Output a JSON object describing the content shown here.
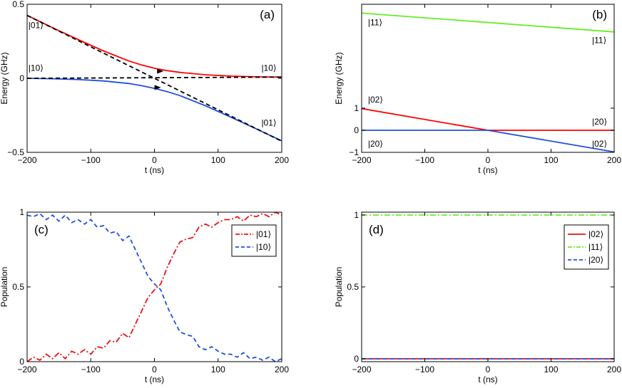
{
  "chart_data": [
    {
      "id": "a",
      "type": "line",
      "panel_label": "(a)",
      "xlabel": "t (ns)",
      "ylabel": "Energy (GHz)",
      "xlim": [
        -200,
        200
      ],
      "ylim": [
        -0.5,
        0.5
      ],
      "xticks": [
        -200,
        -100,
        0,
        100,
        200
      ],
      "yticks": [
        -0.5,
        0,
        0.5
      ],
      "ytick_labels": [
        "−0.5",
        "0",
        "0.5"
      ],
      "xtick_labels": [
        "−200",
        "−100",
        "0",
        "100",
        "200"
      ],
      "series": [
        {
          "name": "upper adiabatic",
          "color": "#ff0000",
          "style": "solid",
          "x": [
            -200,
            -160,
            -120,
            -80,
            -40,
            -20,
            0,
            20,
            40,
            80,
            120,
            160,
            200
          ],
          "y": [
            0.425,
            0.342,
            0.262,
            0.185,
            0.117,
            0.09,
            0.068,
            0.052,
            0.04,
            0.024,
            0.015,
            0.01,
            0.008
          ]
        },
        {
          "name": "lower adiabatic",
          "color": "#2050e0",
          "style": "solid",
          "x": [
            -200,
            -160,
            -120,
            -80,
            -40,
            -20,
            0,
            20,
            40,
            80,
            120,
            160,
            200
          ],
          "y": [
            0.0,
            -0.003,
            -0.008,
            -0.018,
            -0.035,
            -0.05,
            -0.068,
            -0.09,
            -0.117,
            -0.185,
            -0.262,
            -0.342,
            -0.422
          ]
        },
        {
          "name": "|01⟩ diabatic",
          "color": "#000000",
          "style": "dashed",
          "x": [
            -200,
            200
          ],
          "y": [
            0.425,
            -0.425
          ]
        },
        {
          "name": "|10⟩ diabatic",
          "color": "#000000",
          "style": "dashed",
          "x": [
            -200,
            200
          ],
          "y": [
            0.0,
            0.008
          ]
        }
      ],
      "state_labels": [
        {
          "text": "|01⟩",
          "x": -198,
          "y": 0.34
        },
        {
          "text": "|10⟩",
          "x": -198,
          "y": 0.05
        },
        {
          "text": "|10⟩",
          "x": 168,
          "y": 0.05
        },
        {
          "text": "|01⟩",
          "x": 168,
          "y": -0.32
        }
      ],
      "arrows": [
        {
          "x": 12,
          "y": 0.048,
          "color": "#000000"
        },
        {
          "x": 8,
          "y": -0.062,
          "color": "#000000"
        }
      ]
    },
    {
      "id": "b",
      "type": "line",
      "panel_label": "(b)",
      "xlabel": "t (ns)",
      "ylabel": "Energy (GHz)",
      "xlim": [
        -200,
        200
      ],
      "ylim": [
        -1,
        5.7
      ],
      "xticks": [
        -200,
        -100,
        0,
        100,
        200
      ],
      "yticks": [
        -1,
        0,
        1
      ],
      "ytick_labels": [
        "−1",
        "0",
        "1"
      ],
      "xtick_labels": [
        "−200",
        "−100",
        "0",
        "100",
        "200"
      ],
      "series": [
        {
          "name": "|11⟩",
          "color": "#66ee22",
          "style": "solid",
          "x": [
            -200,
            200
          ],
          "y": [
            5.3,
            4.45
          ]
        },
        {
          "name": "|02⟩ to |20⟩",
          "color": "#ff0000",
          "style": "solid",
          "x": [
            -200,
            0,
            200
          ],
          "y": [
            0.98,
            0.0,
            0.0
          ]
        },
        {
          "name": "|20⟩ to |02⟩",
          "color": "#2050e0",
          "style": "solid",
          "x": [
            -200,
            0,
            200
          ],
          "y": [
            0.0,
            0.0,
            -0.98
          ]
        }
      ],
      "state_labels": [
        {
          "text": "|11⟩",
          "x": -190,
          "y": 4.75
        },
        {
          "text": "|11⟩",
          "x": 165,
          "y": 3.95
        },
        {
          "text": "|02⟩",
          "x": -190,
          "y": 1.25
        },
        {
          "text": "|20⟩",
          "x": 165,
          "y": 0.25
        },
        {
          "text": "|20⟩",
          "x": -190,
          "y": -0.75
        },
        {
          "text": "|02⟩",
          "x": 165,
          "y": -0.75
        }
      ]
    },
    {
      "id": "c",
      "type": "line",
      "panel_label": "(c)",
      "xlabel": "t (ns)",
      "ylabel": "Population",
      "xlim": [
        -200,
        200
      ],
      "ylim": [
        0,
        1
      ],
      "xticks": [
        -200,
        -100,
        0,
        100,
        200
      ],
      "yticks": [
        0,
        0.5,
        1
      ],
      "ytick_labels": [
        "0",
        "0.5",
        "1"
      ],
      "xtick_labels": [
        "−200",
        "−100",
        "0",
        "100",
        "200"
      ],
      "legend": {
        "position": "top-right",
        "entries": [
          {
            "label": "|01⟩",
            "color": "#ee1111",
            "style": "dashdot"
          },
          {
            "label": "|10⟩",
            "color": "#2050e0",
            "style": "dashed"
          }
        ]
      },
      "series": [
        {
          "name": "|01⟩",
          "color": "#ee1111",
          "style": "dashdot",
          "x": [
            -200,
            -190,
            -180,
            -170,
            -160,
            -150,
            -140,
            -130,
            -120,
            -110,
            -100,
            -90,
            -80,
            -70,
            -60,
            -50,
            -40,
            -30,
            -20,
            -10,
            0,
            10,
            20,
            30,
            40,
            50,
            60,
            70,
            80,
            90,
            100,
            110,
            120,
            130,
            140,
            150,
            160,
            170,
            180,
            190,
            200
          ],
          "y": [
            0.0,
            0.03,
            0.01,
            0.05,
            0.02,
            0.06,
            0.02,
            0.07,
            0.05,
            0.08,
            0.05,
            0.1,
            0.09,
            0.14,
            0.13,
            0.19,
            0.16,
            0.25,
            0.34,
            0.43,
            0.48,
            0.52,
            0.63,
            0.72,
            0.8,
            0.82,
            0.83,
            0.9,
            0.92,
            0.9,
            0.93,
            0.95,
            0.95,
            0.97,
            0.94,
            0.98,
            0.97,
            0.99,
            0.97,
            1.0,
            0.98
          ]
        },
        {
          "name": "|10⟩",
          "color": "#2050e0",
          "style": "dashed",
          "x": [
            -200,
            -190,
            -180,
            -170,
            -160,
            -150,
            -140,
            -130,
            -120,
            -110,
            -100,
            -90,
            -80,
            -70,
            -60,
            -50,
            -40,
            -30,
            -20,
            -10,
            0,
            10,
            20,
            30,
            40,
            50,
            60,
            70,
            80,
            90,
            100,
            110,
            120,
            130,
            140,
            150,
            160,
            170,
            180,
            190,
            200
          ],
          "y": [
            0.98,
            0.97,
            0.99,
            0.95,
            0.98,
            0.94,
            0.98,
            0.93,
            0.95,
            0.92,
            0.95,
            0.9,
            0.91,
            0.86,
            0.87,
            0.81,
            0.84,
            0.75,
            0.66,
            0.57,
            0.52,
            0.48,
            0.37,
            0.28,
            0.2,
            0.18,
            0.17,
            0.1,
            0.08,
            0.1,
            0.07,
            0.05,
            0.05,
            0.03,
            0.06,
            0.02,
            0.03,
            0.01,
            0.03,
            0.0,
            0.02
          ]
        }
      ]
    },
    {
      "id": "d",
      "type": "line",
      "panel_label": "(d)",
      "xlabel": "t (ns)",
      "ylabel": "Population",
      "xlim": [
        -200,
        200
      ],
      "ylim": [
        -0.02,
        1.02
      ],
      "xticks": [
        -200,
        -100,
        0,
        100,
        200
      ],
      "yticks": [
        0,
        0.5,
        1
      ],
      "ytick_labels": [
        "0",
        "0.5",
        "1"
      ],
      "xtick_labels": [
        "−200",
        "−100",
        "0",
        "100",
        "200"
      ],
      "legend": {
        "position": "top-right",
        "entries": [
          {
            "label": "|02⟩",
            "color": "#ee1111",
            "style": "solid"
          },
          {
            "label": "|11⟩",
            "color": "#66ee22",
            "style": "dashdot"
          },
          {
            "label": "|20⟩",
            "color": "#2050e0",
            "style": "dashed"
          }
        ]
      },
      "series": [
        {
          "name": "|02⟩",
          "color": "#ee1111",
          "style": "solid",
          "x": [
            -200,
            200
          ],
          "y": [
            0.0,
            0.0
          ]
        },
        {
          "name": "|11⟩",
          "color": "#66ee22",
          "style": "dashdot",
          "x": [
            -200,
            200
          ],
          "y": [
            1.0,
            1.0
          ]
        },
        {
          "name": "|20⟩",
          "color": "#2050e0",
          "style": "dashed",
          "x": [
            -200,
            200
          ],
          "y": [
            0.0,
            0.0
          ]
        }
      ]
    }
  ]
}
